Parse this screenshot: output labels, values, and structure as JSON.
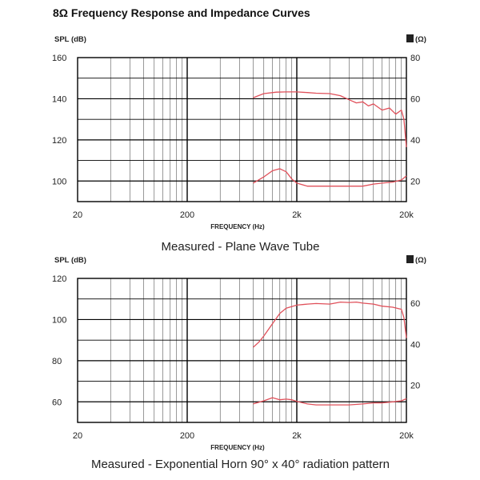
{
  "page_title": "8Ω Frequency Response and Impedance Curves",
  "colors": {
    "curve": "#e0505a",
    "grid": "#1a1a1a"
  },
  "chart_data": [
    {
      "type": "line",
      "caption": "Measured - Plane Wave Tube",
      "xlabel": "FREQUENCY (Hz)",
      "xscale": "log",
      "xlim": [
        20,
        20000
      ],
      "x_ticks": [
        20,
        200,
        2000,
        20000
      ],
      "x_tick_labels": [
        "20",
        "200",
        "2k",
        "20k"
      ],
      "ylabel_left": "SPL (dB)",
      "ylim_left": [
        90,
        160
      ],
      "y_ticks_left": [
        100,
        120,
        140,
        160
      ],
      "ylabel_right_symbol": "Z",
      "ylabel_right_unit": "(Ω)",
      "y_ticks_right": [
        20,
        40,
        60,
        80
      ],
      "right_tick_ref_left": [
        100,
        120,
        140,
        160
      ],
      "grid": true,
      "series": [
        {
          "axis": "left",
          "x": [
            800,
            1000,
            1300,
            1600,
            2000,
            2500,
            3000,
            4000,
            5000,
            6000,
            7000,
            8000,
            9000,
            10000,
            12000,
            14000,
            16000,
            18000,
            19000,
            20000
          ],
          "y": [
            140.5,
            142.5,
            143.2,
            143.3,
            143.3,
            143,
            142.7,
            142.5,
            141.5,
            139.5,
            138,
            138.5,
            136.5,
            137.5,
            134.5,
            135.5,
            132.5,
            134.5,
            130,
            116.5
          ]
        },
        {
          "axis": "left",
          "x": [
            800,
            1000,
            1200,
            1400,
            1600,
            1800,
            2000,
            2500,
            3000,
            4000,
            5000,
            6000,
            8000,
            10000,
            12000,
            15000,
            18000,
            20000
          ],
          "y": [
            99,
            102,
            105,
            106,
            104.5,
            101,
            99,
            97.5,
            97.5,
            97.5,
            97.5,
            97.5,
            97.5,
            98.5,
            99,
            99.5,
            100.5,
            102.5
          ]
        }
      ]
    },
    {
      "type": "line",
      "caption": "Measured - Exponential Horn 90° x 40° radiation pattern",
      "xlabel": "FREQUENCY (Hz)",
      "xscale": "log",
      "xlim": [
        20,
        20000
      ],
      "x_ticks": [
        20,
        200,
        2000,
        20000
      ],
      "x_tick_labels": [
        "20",
        "200",
        "2k",
        "20k"
      ],
      "ylabel_left": "SPL (dB)",
      "ylim_left": [
        50,
        120
      ],
      "y_ticks_left": [
        60,
        80,
        100,
        120
      ],
      "ylabel_right_symbol": "Z",
      "ylabel_right_unit": "(Ω)",
      "y_ticks_right": [
        20,
        40,
        60
      ],
      "right_tick_ref_left": [
        68,
        88,
        108
      ],
      "grid": true,
      "series": [
        {
          "axis": "left",
          "x": [
            800,
            900,
            1000,
            1200,
            1400,
            1600,
            2000,
            2500,
            3000,
            4000,
            5000,
            6000,
            7000,
            8000,
            10000,
            12000,
            15000,
            18000,
            19000,
            20000
          ],
          "y": [
            86.5,
            89,
            92,
            98,
            103,
            105.5,
            107,
            107.5,
            107.8,
            107.5,
            108.5,
            108.3,
            108.5,
            108,
            107.5,
            106.5,
            106,
            105,
            101,
            91
          ]
        },
        {
          "axis": "left",
          "x": [
            800,
            1000,
            1200,
            1400,
            1600,
            1800,
            2000,
            2500,
            3000,
            4000,
            5000,
            6000,
            8000,
            10000,
            12000,
            15000,
            18000,
            20000
          ],
          "y": [
            59,
            60.5,
            62,
            61,
            61.3,
            61,
            60.2,
            59,
            58.5,
            58.5,
            58.5,
            58.5,
            59,
            59.5,
            59.5,
            60,
            60.5,
            61.5
          ]
        }
      ]
    }
  ]
}
